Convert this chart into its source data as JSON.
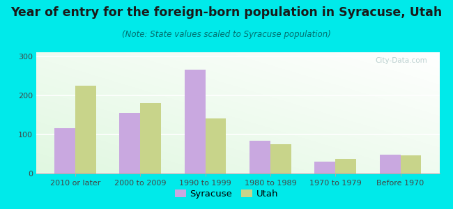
{
  "title": "Year of entry for the foreign-born population in Syracuse, Utah",
  "subtitle": "(Note: State values scaled to Syracuse population)",
  "categories": [
    "2010 or later",
    "2000 to 2009",
    "1990 to 1999",
    "1980 to 1989",
    "1970 to 1979",
    "Before 1970"
  ],
  "syracuse_values": [
    115,
    155,
    265,
    83,
    30,
    48
  ],
  "utah_values": [
    225,
    180,
    140,
    75,
    38,
    47
  ],
  "syracuse_color": "#c9a8e0",
  "utah_color": "#c8d48a",
  "background_color": "#00eaea",
  "ylim": [
    0,
    310
  ],
  "yticks": [
    0,
    100,
    200,
    300
  ],
  "bar_width": 0.32,
  "title_fontsize": 12.5,
  "subtitle_fontsize": 8.5,
  "tick_fontsize": 8,
  "legend_fontsize": 9.5,
  "watermark_text": "Ⓢ  City-Data.com"
}
